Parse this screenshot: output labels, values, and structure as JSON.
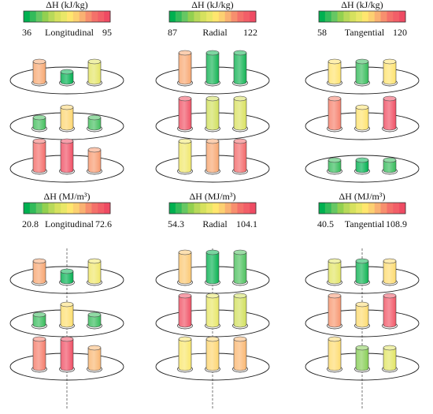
{
  "colors": {
    "scale": [
      "#00b050",
      "#33bb5a",
      "#66c763",
      "#92d050",
      "#b8d95a",
      "#d6e15e",
      "#e9e768",
      "#ffe66e",
      "#fcd071",
      "#f9b172",
      "#f78f6e",
      "#f4716a",
      "#f25f68",
      "#ef4b63"
    ],
    "cyl_top_blend": "#ffffff",
    "outline": "#222222",
    "plate": "#222222",
    "dash": "#555555"
  },
  "panels": [
    {
      "label": "ΔH (kJ/kg)",
      "axis_name": "Longitudinal",
      "min_label": "36",
      "max_label": "95",
      "min": 36,
      "max": 95,
      "dashed_axis": false,
      "levels": [
        [
          {
            "value": 78,
            "height": "medium"
          },
          {
            "value": 36,
            "height": "short"
          },
          {
            "value": 62,
            "height": "medium"
          }
        ],
        [
          {
            "value": 42,
            "height": "short"
          },
          {
            "value": 71,
            "height": "medium"
          },
          {
            "value": 42,
            "height": "short"
          }
        ],
        [
          {
            "value": 87,
            "height": "tall"
          },
          {
            "value": 94,
            "height": "tall"
          },
          {
            "value": 80,
            "height": "medium"
          }
        ]
      ]
    },
    {
      "label": "ΔH (kJ/kg)",
      "axis_name": "Radial",
      "min_label": "87",
      "max_label": "122",
      "min": 87,
      "max": 122,
      "dashed_axis": false,
      "levels": [
        [
          {
            "value": 112,
            "height": "tall"
          },
          {
            "value": 88,
            "height": "tall"
          },
          {
            "value": 88,
            "height": "tall"
          }
        ],
        [
          {
            "value": 121,
            "height": "tall"
          },
          {
            "value": 100,
            "height": "tall"
          },
          {
            "value": 101,
            "height": "tall"
          }
        ],
        [
          {
            "value": 104,
            "height": "tall"
          },
          {
            "value": 112,
            "height": "tall"
          },
          {
            "value": 118,
            "height": "tall"
          }
        ]
      ]
    },
    {
      "label": "ΔH (kJ/kg)",
      "axis_name": "Tangential",
      "min_label": "58",
      "max_label": "120",
      "min": 58,
      "max": 120,
      "dashed_axis": false,
      "levels": [
        [
          {
            "value": 92,
            "height": "medium"
          },
          {
            "value": 63,
            "height": "medium"
          },
          {
            "value": 92,
            "height": "medium"
          }
        ],
        [
          {
            "value": 108,
            "height": "tall"
          },
          {
            "value": 92,
            "height": "medium"
          },
          {
            "value": 119,
            "height": "tall"
          }
        ],
        [
          {
            "value": 63,
            "height": "short"
          },
          {
            "value": 58,
            "height": "short"
          },
          {
            "value": 63,
            "height": "short"
          }
        ]
      ]
    },
    {
      "label": "ΔH (MJ/m³)",
      "axis_name": "Longitudinal",
      "min_label": "20.8",
      "max_label": "72.6",
      "min": 20.8,
      "max": 72.6,
      "dashed_axis": true,
      "levels": [
        [
          {
            "value": 58,
            "height": "medium"
          },
          {
            "value": 21,
            "height": "short"
          },
          {
            "value": 46,
            "height": "medium"
          }
        ],
        [
          {
            "value": 25,
            "height": "short"
          },
          {
            "value": 50,
            "height": "medium"
          },
          {
            "value": 25,
            "height": "short"
          }
        ],
        [
          {
            "value": 63,
            "height": "tall"
          },
          {
            "value": 72,
            "height": "tall"
          },
          {
            "value": 56,
            "height": "medium"
          }
        ]
      ]
    },
    {
      "label": "ΔH (MJ/m³)",
      "axis_name": "Radial",
      "min_label": "54.3",
      "max_label": "104.1",
      "min": 54.3,
      "max": 104.1,
      "dashed_axis": true,
      "levels": [
        [
          {
            "value": 86,
            "height": "tall"
          },
          {
            "value": 55,
            "height": "tall"
          },
          {
            "value": 60,
            "height": "tall"
          }
        ],
        [
          {
            "value": 103,
            "height": "tall"
          },
          {
            "value": 77,
            "height": "tall"
          },
          {
            "value": 73,
            "height": "tall"
          }
        ],
        [
          {
            "value": 80,
            "height": "tall"
          },
          {
            "value": 84,
            "height": "tall"
          },
          {
            "value": 88,
            "height": "tall"
          }
        ]
      ]
    },
    {
      "label": "ΔH (MJ/m³)",
      "axis_name": "Tangential",
      "min_label": "40.5",
      "max_label": "108.9",
      "min": 40.5,
      "max": 108.9,
      "dashed_axis": true,
      "levels": [
        [
          {
            "value": 70,
            "height": "medium"
          },
          {
            "value": 42,
            "height": "medium"
          },
          {
            "value": 80,
            "height": "medium"
          }
        ],
        [
          {
            "value": 92,
            "height": "tall"
          },
          {
            "value": 80,
            "height": "medium"
          },
          {
            "value": 106,
            "height": "tall"
          }
        ],
        [
          {
            "value": 80,
            "height": "tall"
          },
          {
            "value": 55,
            "height": "medium"
          },
          {
            "value": 70,
            "height": "medium"
          }
        ]
      ]
    }
  ]
}
